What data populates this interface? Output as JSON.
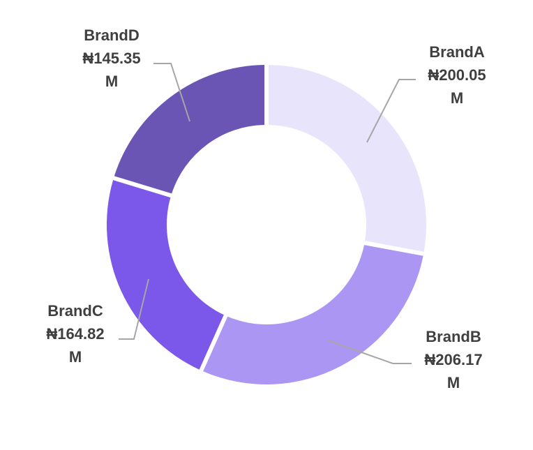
{
  "chart_data": {
    "type": "pie",
    "subtype": "donut",
    "currency_symbol": "₦",
    "unit_suffix": "M",
    "slices": [
      {
        "label": "BrandA",
        "value": 200.05,
        "value_text": "₦200.05",
        "unit_text": "M",
        "color": "#e8e4fb"
      },
      {
        "label": "BrandB",
        "value": 206.17,
        "value_text": "₦206.17",
        "unit_text": "M",
        "color": "#ab96f3"
      },
      {
        "label": "BrandC",
        "value": 164.82,
        "value_text": "₦164.82",
        "unit_text": "M",
        "color": "#7b57ea"
      },
      {
        "label": "BrandD",
        "value": 145.35,
        "value_text": "₦145.35",
        "unit_text": "M",
        "color": "#6a55b4"
      }
    ],
    "legend": "none",
    "labels": "outside-with-leader-lines"
  }
}
